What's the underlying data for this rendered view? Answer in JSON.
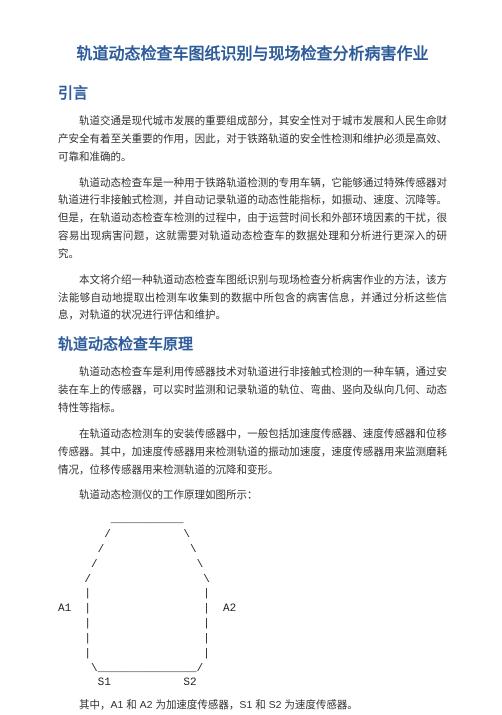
{
  "title": "轨道动态检查车图纸识别与现场检查分析病害作业",
  "section1": {
    "heading": "引言",
    "p1": "轨道交通是现代城市发展的重要组成部分，其安全性对于城市发展和人民生命财产安全有着至关重要的作用，因此，对于铁路轨道的安全性检测和维护必须是高效、可靠和准确的。",
    "p2": "轨道动态检查车是一种用于铁路轨道检测的专用车辆，它能够通过特殊传感器对轨道进行非接触式检测，并自动记录轨道的动态性能指标，如振动、速度、沉降等。但是，在轨道动态检查车检测的过程中，由于运营时间长和外部环境因素的干扰，很容易出现病害问题，这就需要对轨道动态检查车的数据处理和分析进行更深入的研究。",
    "p3": "本文将介绍一种轨道动态检查车图纸识别与现场检查分析病害作业的方法，该方法能够自动地提取出检测车收集到的数据中所包含的病害信息，并通过分析这些信息，对轨道的状况进行评估和维护。"
  },
  "section2": {
    "heading": "轨道动态检查车原理",
    "p1": "轨道动态检查车是利用传感器技术对轨道进行非接触式检测的一种车辆，通过安装在车上的传感器，可以实时监测和记录轨道的轨位、弯曲、竖向及纵向几何、动态特性等指标。",
    "p2": "在轨道动态检测车的安装传感器中，一般包括加速度传感器、速度传感器和位移传感器。其中，加速度传感器用来检测轨道的振动加速度，速度传感器用来监测磨耗情况，位移传感器用来检测轨道的沉降和变形。",
    "p3": "轨道动态检测仪的工作原理如图所示：",
    "diagram": "        ___________\n       /           \\\n      /             \\\n     /               \\\n    /                 \\\n    |                 |\nA1  |                 |  A2\n    |                 |\n    |                 |\n    |                 |\n     \\_______________/\n      S1           S2",
    "p4": "其中，A1 和 A2 为加速度传感器，S1 和 S2 为速度传感器。"
  },
  "colors": {
    "heading": "#2e5c9a",
    "text": "#333333",
    "background": "#ffffff"
  }
}
